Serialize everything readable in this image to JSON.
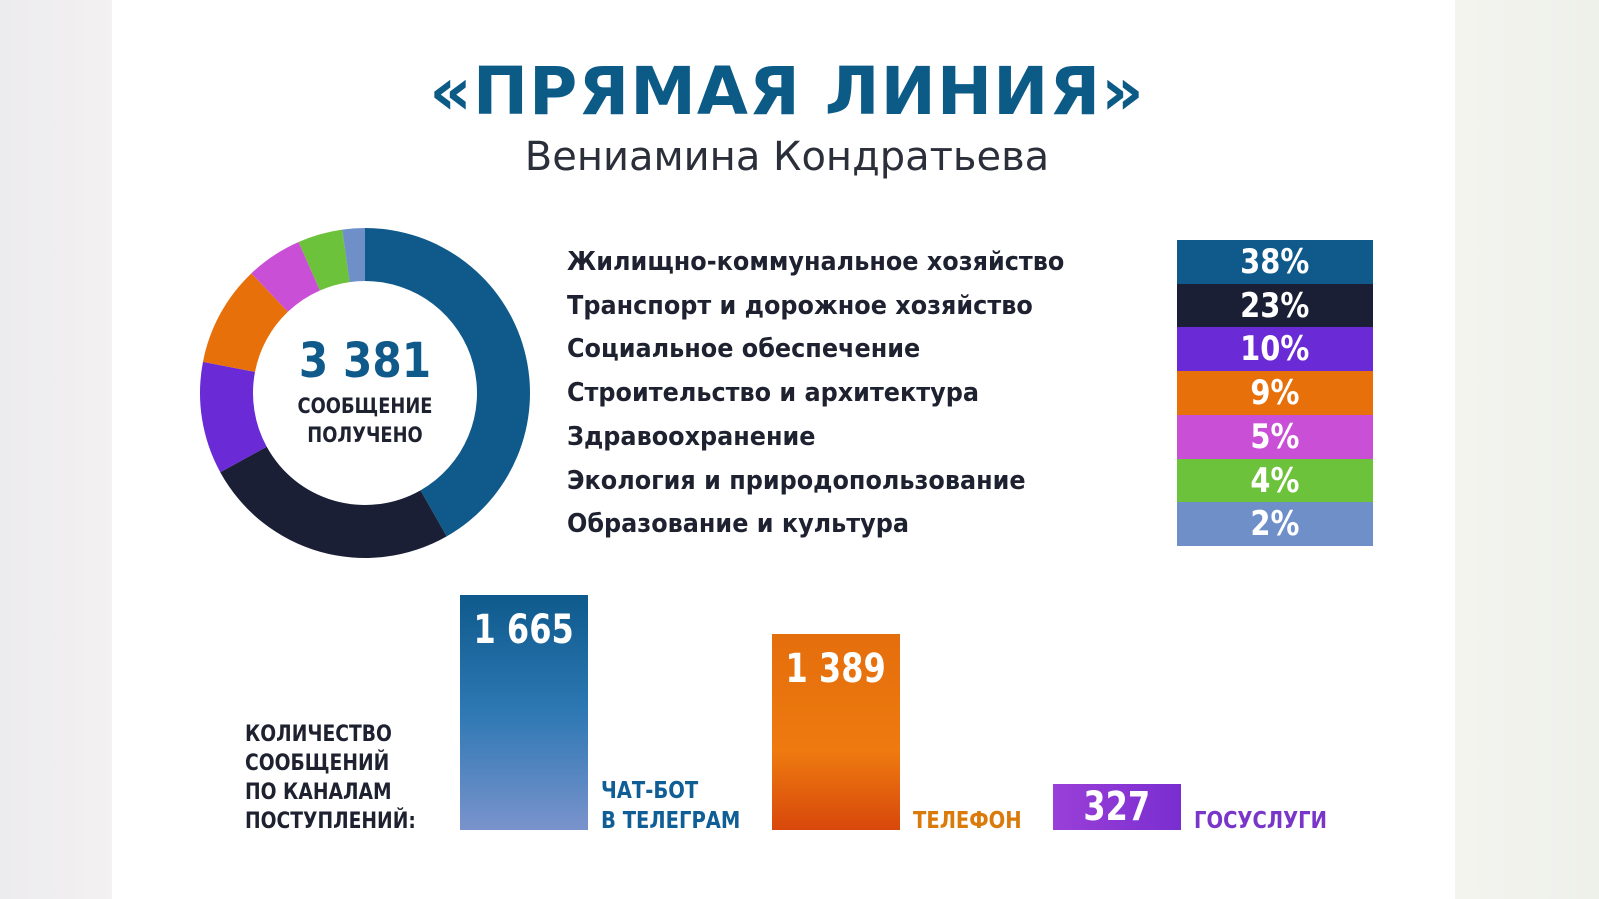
{
  "header": {
    "title": "«ПРЯМАЯ ЛИНИЯ»",
    "subtitle": "Вениамина Кондратьева"
  },
  "chart_data": [
    {
      "type": "pie",
      "title": "3 381 СООБЩЕНИЕ ПОЛУЧЕНО",
      "total": "3 381",
      "center_line1": "СООБЩЕНИЕ",
      "center_line2": "ПОЛУЧЕНО",
      "categories": [
        "Жилищно-коммунальное хозяйство",
        "Транспорт и дорожное хозяйство",
        "Социальное обеспечение",
        "Строительство и архитектура",
        "Здравоохранение",
        "Экология и природопользование",
        "Образование и культура"
      ],
      "values": [
        38,
        23,
        10,
        9,
        5,
        4,
        2
      ],
      "labels": [
        "38%",
        "23%",
        "10%",
        "9%",
        "5%",
        "4%",
        "2%"
      ],
      "colors": [
        "#0f5a8a",
        "#1b1f35",
        "#6a2ad6",
        "#e8700a",
        "#c94fd6",
        "#6cc23a",
        "#6f8fc8"
      ]
    },
    {
      "type": "bar",
      "title": "КОЛИЧЕСТВО СООБЩЕНИЙ ПО КАНАЛАМ ПОСТУПЛЕНИЙ:",
      "title_lines": [
        "КОЛИЧЕСТВО",
        "СООБЩЕНИЙ",
        "ПО КАНАЛАМ",
        "ПОСТУПЛЕНИЙ:"
      ],
      "categories": [
        "ЧАТ-БОТ В ТЕЛЕГРАМ",
        "ТЕЛЕФОН",
        "ГОСУСЛУГИ"
      ],
      "category_lines": [
        [
          "ЧАТ-БОТ",
          "В ТЕЛЕГРАМ"
        ],
        [
          "ТЕЛЕФОН"
        ],
        [
          "ГОСУСЛУГИ"
        ]
      ],
      "values": [
        1665,
        1389,
        327
      ],
      "labels": [
        "1 665",
        "1 389",
        "327"
      ],
      "colors": [
        "#1466a0",
        "#e8700a",
        "#8a35d6"
      ],
      "label_colors": [
        "#0f5f96",
        "#d97a0a",
        "#7a36c8"
      ]
    }
  ]
}
